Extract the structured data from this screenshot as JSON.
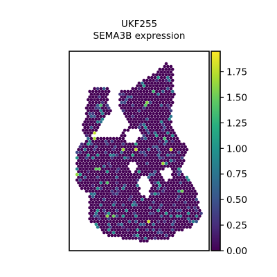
{
  "chart_data": {
    "type": "scatter",
    "title_line1": "UKF255",
    "title_line2": "SEMA3B expression",
    "xlabel": "",
    "ylabel": "",
    "grid": false,
    "colormap": "viridis",
    "colorbar": {
      "min": 0.0,
      "max": 1.95,
      "ticks": [
        0.0,
        0.25,
        0.5,
        0.75,
        1.0,
        1.25,
        1.5,
        1.75
      ],
      "tick_labels": [
        "0.00",
        "0.25",
        "0.50",
        "0.75",
        "1.00",
        "1.25",
        "1.50",
        "1.75"
      ]
    },
    "tissue_outline": [
      [
        128,
        132
      ],
      [
        136,
        124
      ],
      [
        158,
        126
      ],
      [
        156,
        145
      ],
      [
        160,
        160
      ],
      [
        148,
        178
      ],
      [
        140,
        194
      ],
      [
        126,
        198
      ],
      [
        118,
        190
      ],
      [
        122,
        172
      ],
      [
        126,
        150
      ]
    ],
    "tissue_main": [
      [
        172,
        132
      ],
      [
        188,
        130
      ],
      [
        202,
        118
      ],
      [
        214,
        110
      ],
      [
        226,
        104
      ],
      [
        234,
        96
      ],
      [
        242,
        90
      ],
      [
        252,
        98
      ],
      [
        250,
        120
      ],
      [
        252,
        140
      ],
      [
        248,
        160
      ],
      [
        248,
        178
      ],
      [
        256,
        196
      ],
      [
        264,
        206
      ],
      [
        272,
        216
      ],
      [
        266,
        232
      ],
      [
        260,
        246
      ],
      [
        270,
        254
      ],
      [
        278,
        262
      ],
      [
        284,
        280
      ],
      [
        288,
        300
      ],
      [
        292,
        312
      ],
      [
        284,
        322
      ],
      [
        272,
        330
      ],
      [
        256,
        336
      ],
      [
        244,
        344
      ],
      [
        226,
        346
      ],
      [
        210,
        349
      ],
      [
        190,
        347
      ],
      [
        172,
        343
      ],
      [
        156,
        341
      ],
      [
        144,
        331
      ],
      [
        130,
        321
      ],
      [
        128,
        305
      ],
      [
        128,
        290
      ],
      [
        130,
        280
      ],
      [
        118,
        272
      ],
      [
        110,
        262
      ],
      [
        110,
        246
      ],
      [
        110,
        222
      ],
      [
        116,
        208
      ],
      [
        128,
        198
      ],
      [
        146,
        196
      ],
      [
        160,
        198
      ],
      [
        170,
        198
      ],
      [
        178,
        190
      ],
      [
        186,
        180
      ],
      [
        180,
        166
      ],
      [
        172,
        150
      ]
    ],
    "holes": [
      [
        [
          182,
          190
        ],
        [
          196,
          184
        ],
        [
          204,
          196
        ],
        [
          194,
          208
        ],
        [
          182,
          204
        ]
      ],
      [
        [
          186,
          236
        ],
        [
          196,
          232
        ],
        [
          198,
          246
        ],
        [
          188,
          250
        ]
      ],
      [
        [
          200,
          258
        ],
        [
          212,
          252
        ],
        [
          218,
          268
        ],
        [
          214,
          286
        ],
        [
          202,
          282
        ]
      ],
      [
        [
          232,
          246
        ],
        [
          246,
          240
        ],
        [
          250,
          256
        ],
        [
          236,
          262
        ]
      ]
    ],
    "seed": 255
  }
}
